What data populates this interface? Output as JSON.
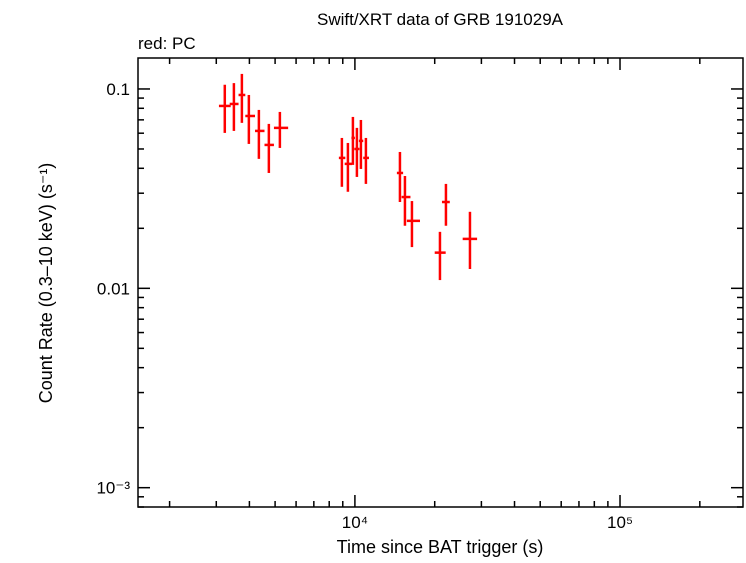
{
  "chart_data": {
    "type": "scatter",
    "title": "Swift/XRT data of GRB 191029A",
    "legend_text": "red: PC",
    "xlabel": "Time since BAT trigger (s)",
    "ylabel": "Count Rate (0.3–10 keV) (s⁻¹)",
    "xscale": "log",
    "yscale": "log",
    "xlim": [
      1520,
      291000
    ],
    "ylim": [
      0.0008,
      0.143
    ],
    "x_ticks": [
      {
        "value": 10000,
        "label": "10⁴"
      },
      {
        "value": 100000,
        "label": "10⁵"
      }
    ],
    "y_ticks": [
      {
        "value": 0.1,
        "label": "0.1"
      },
      {
        "value": 0.01,
        "label": "0.01"
      },
      {
        "value": 0.001,
        "label": "10⁻³"
      }
    ],
    "grid": false,
    "series": [
      {
        "color": "#ff0000",
        "points": [
          {
            "x": 3230,
            "x_lo": 3070,
            "x_hi": 3400,
            "y": 0.0822,
            "y_lo": 0.0602,
            "y_hi": 0.105
          },
          {
            "x": 3496,
            "x_lo": 3370,
            "x_hi": 3640,
            "y": 0.0841,
            "y_lo": 0.0616,
            "y_hi": 0.107
          },
          {
            "x": 3747,
            "x_lo": 3640,
            "x_hi": 3860,
            "y": 0.0933,
            "y_lo": 0.0676,
            "y_hi": 0.119
          },
          {
            "x": 3981,
            "x_lo": 3860,
            "x_hi": 4200,
            "y": 0.0732,
            "y_lo": 0.053,
            "y_hi": 0.0933
          },
          {
            "x": 4343,
            "x_lo": 4200,
            "x_hi": 4560,
            "y": 0.0616,
            "y_lo": 0.0446,
            "y_hi": 0.0785
          },
          {
            "x": 4736,
            "x_lo": 4560,
            "x_hi": 4950,
            "y": 0.0524,
            "y_lo": 0.0379,
            "y_hi": 0.0668
          },
          {
            "x": 5212,
            "x_lo": 4950,
            "x_hi": 5600,
            "y": 0.0638,
            "y_lo": 0.0506,
            "y_hi": 0.0767
          },
          {
            "x": 8931,
            "x_lo": 8700,
            "x_hi": 9200,
            "y": 0.0451,
            "y_lo": 0.0323,
            "y_hi": 0.0568
          },
          {
            "x": 9410,
            "x_lo": 9150,
            "x_hi": 9750,
            "y": 0.0421,
            "y_lo": 0.0305,
            "y_hi": 0.0536
          },
          {
            "x": 9828,
            "x_lo": 9700,
            "x_hi": 10000,
            "y": 0.0568,
            "y_lo": 0.0416,
            "y_hi": 0.0724
          },
          {
            "x": 10175,
            "x_lo": 9950,
            "x_hi": 10400,
            "y": 0.05,
            "y_lo": 0.0362,
            "y_hi": 0.0638
          },
          {
            "x": 10535,
            "x_lo": 10350,
            "x_hi": 10750,
            "y": 0.0549,
            "y_lo": 0.0397,
            "y_hi": 0.0699
          },
          {
            "x": 11003,
            "x_lo": 10750,
            "x_hi": 11300,
            "y": 0.0451,
            "y_lo": 0.0334,
            "y_hi": 0.0568
          },
          {
            "x": 14787,
            "x_lo": 14400,
            "x_hi": 15200,
            "y": 0.0379,
            "y_lo": 0.0271,
            "y_hi": 0.0483
          },
          {
            "x": 15443,
            "x_lo": 15000,
            "x_hi": 16200,
            "y": 0.0287,
            "y_lo": 0.0206,
            "y_hi": 0.0366
          },
          {
            "x": 16412,
            "x_lo": 15700,
            "x_hi": 17600,
            "y": 0.0218,
            "y_lo": 0.0161,
            "y_hi": 0.0274
          },
          {
            "x": 20932,
            "x_lo": 20000,
            "x_hi": 22000,
            "y": 0.0151,
            "y_lo": 0.011,
            "y_hi": 0.0192
          },
          {
            "x": 22049,
            "x_lo": 21300,
            "x_hi": 22800,
            "y": 0.0271,
            "y_lo": 0.0206,
            "y_hi": 0.0334
          },
          {
            "x": 27164,
            "x_lo": 25500,
            "x_hi": 28900,
            "y": 0.0177,
            "y_lo": 0.0125,
            "y_hi": 0.0242
          }
        ]
      }
    ]
  }
}
